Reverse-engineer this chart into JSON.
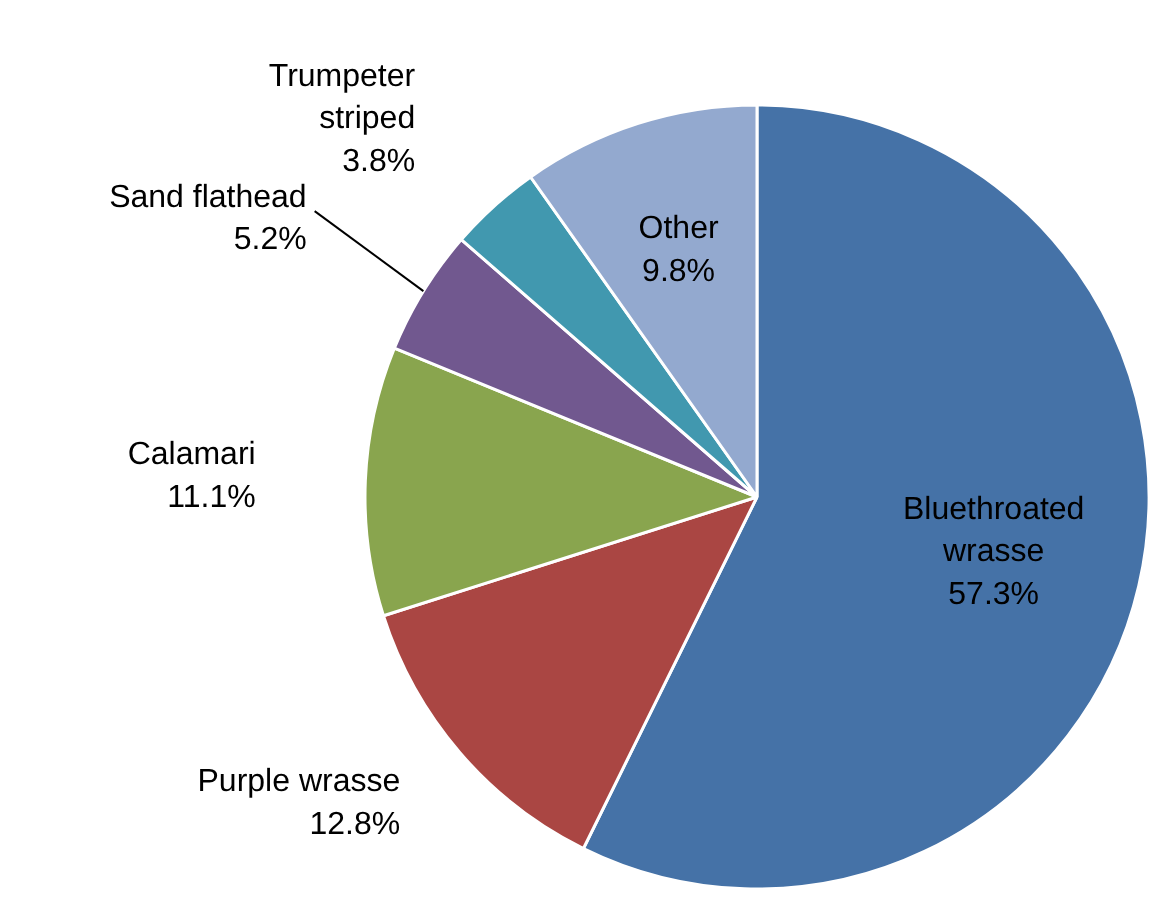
{
  "chart_data": {
    "type": "pie",
    "categories": [
      "Bluethroated wrasse",
      "Purple wrasse",
      "Calamari",
      "Sand flathead",
      "Trumpeter striped",
      "Other"
    ],
    "values": [
      57.3,
      12.8,
      11.1,
      5.2,
      3.8,
      9.8
    ],
    "value_labels": [
      "57.3%",
      "12.8%",
      "11.1%",
      "5.2%",
      "3.8%",
      "9.8%"
    ],
    "colors": [
      "#4572a7",
      "#aa4643",
      "#89a54e",
      "#71588f",
      "#4198af",
      "#93a9cf"
    ]
  }
}
